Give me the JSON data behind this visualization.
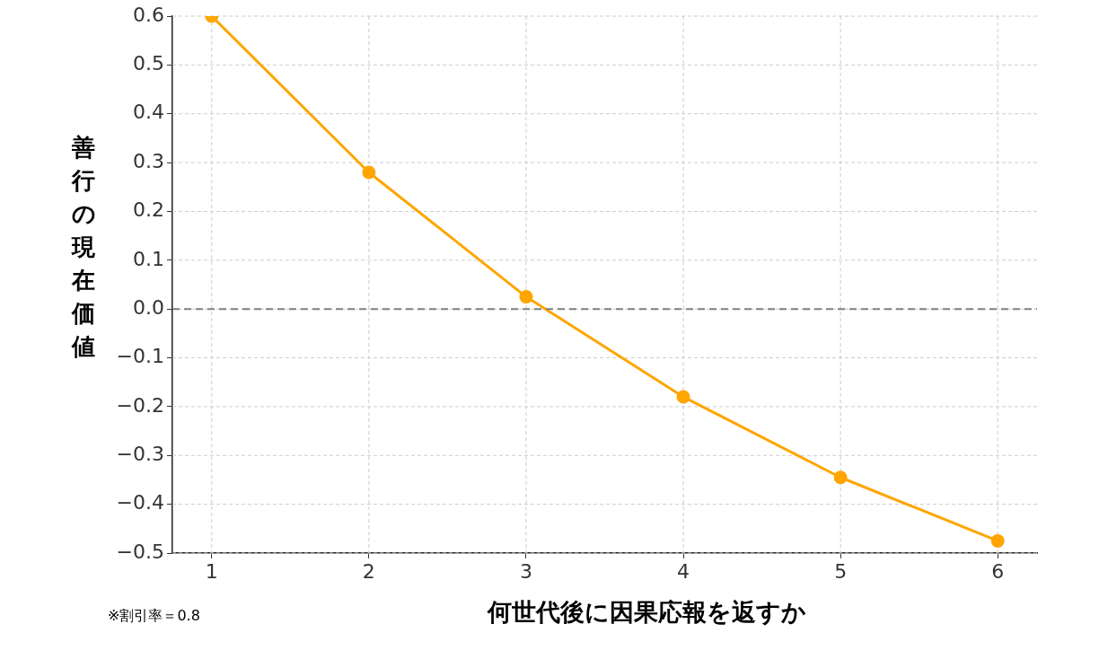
{
  "chart_data": {
    "type": "line",
    "xlabel": "何世代後に因果応報を返すか",
    "ylabel": "善行の現在価値",
    "annotations": [
      "※割引率＝0.8"
    ],
    "x": [
      1,
      2,
      3,
      4,
      5,
      6
    ],
    "series": [
      {
        "color": "#ffa500",
        "values": [
          0.6,
          0.28,
          0.025,
          -0.18,
          -0.345,
          -0.475
        ]
      }
    ],
    "xlim": [
      0.75,
      6.25
    ],
    "xticks": [
      1,
      2,
      3,
      4,
      5,
      6
    ],
    "ylim": [
      -0.5,
      0.6
    ],
    "yticks": [
      {
        "value": -0.5,
        "label": "−0.5"
      },
      {
        "value": -0.4,
        "label": "−0.4"
      },
      {
        "value": -0.3,
        "label": "−0.3"
      },
      {
        "value": -0.2,
        "label": "−0.2"
      },
      {
        "value": -0.1,
        "label": "−0.1"
      },
      {
        "value": 0,
        "label": "0.0"
      },
      {
        "value": 0.1,
        "label": "0.1"
      },
      {
        "value": 0.2,
        "label": "0.2"
      },
      {
        "value": 0.3,
        "label": "0.3"
      },
      {
        "value": 0.4,
        "label": "0.4"
      },
      {
        "value": 0.5,
        "label": "0.5"
      },
      {
        "value": 0.6,
        "label": "0.6"
      }
    ],
    "ref_lines": [
      {
        "axis": "y",
        "value": 0,
        "color": "#808080",
        "line_style": "dashed"
      }
    ],
    "grid": true,
    "legend": false,
    "marker": "circle",
    "line_style": "solid"
  }
}
